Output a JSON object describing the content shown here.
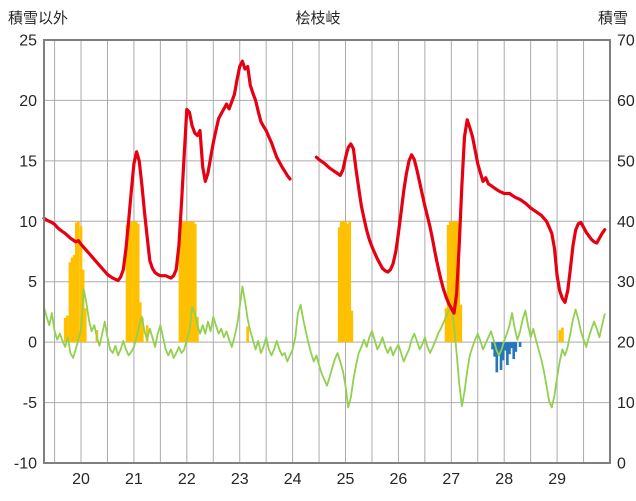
{
  "chart_data": {
    "type": "mixed",
    "title": "桧枝岐",
    "left_axis": {
      "title": "積雪以外",
      "lim": [
        -10,
        25
      ],
      "ticks": [
        -10,
        -5,
        0,
        5,
        10,
        15,
        20,
        25
      ]
    },
    "right_axis": {
      "title": "積雪",
      "lim": [
        0,
        70
      ],
      "ticks": [
        0,
        10,
        20,
        30,
        40,
        50,
        60,
        70
      ]
    },
    "x_axis": {
      "lim": [
        19.3,
        30.0
      ],
      "ticks": [
        20,
        21,
        22,
        23,
        24,
        25,
        26,
        27,
        28,
        29
      ],
      "grid_start": 19.5,
      "grid_step": 0.5,
      "grid_end": 29.5
    },
    "grid": {
      "on": true,
      "color": "#ababab",
      "frame_color": "#7f7f7f"
    },
    "legend": {
      "position": "none"
    },
    "series": [
      {
        "name": "snow-depth-line",
        "type": "line",
        "axis": "right",
        "color": "#e60012",
        "width": 3.2,
        "segments": [
          {
            "x_start": 19.3,
            "x_step": 0.05,
            "values": [
              40.5,
              40.2,
              40.0,
              39.8,
              39.5,
              39.0,
              38.6,
              38.3,
              38.0,
              37.6,
              37.2,
              36.9,
              36.6,
              36.8,
              36.2,
              35.7,
              35.2,
              34.7,
              34.2,
              33.7,
              33.2,
              32.7,
              32.2,
              31.7,
              31.2,
              30.9,
              30.6,
              30.4,
              30.2,
              30.8,
              32.0,
              35.5,
              40.0,
              45.0,
              49.5,
              51.5,
              50.0,
              46.0,
              41.5,
              37.5,
              33.5,
              32.2,
              31.5,
              31.2,
              31.0,
              31.0,
              31.0,
              30.8,
              30.6,
              31.0,
              32.0,
              36.0,
              43.0,
              51.0,
              58.5,
              58.0,
              55.8,
              54.6,
              54.2,
              55.0,
              49.0,
              46.6,
              48.0,
              50.5,
              53.0,
              55.0,
              57.0,
              57.8,
              58.6,
              59.4,
              58.6,
              59.8,
              61.0,
              63.5,
              65.6,
              66.5,
              65.2,
              65.6,
              62.5,
              61.2,
              60.0,
              58.2,
              56.5,
              55.7,
              55.0,
              54.0,
              53.0,
              51.8,
              50.6,
              49.8,
              49.0,
              48.3,
              47.6,
              47.0
            ]
          },
          {
            "x_start": 24.45,
            "x_step": 0.05,
            "values": [
              50.6,
              50.2,
              49.9,
              49.6,
              49.2,
              48.8,
              48.5,
              48.2,
              47.9,
              47.6,
              48.5,
              50.5,
              52.2,
              52.8,
              52.0,
              48.5,
              45.5,
              42.5,
              40.5,
              38.5,
              37.0,
              35.8,
              34.8,
              33.8,
              33.0,
              32.2,
              31.8,
              31.6,
              32.0,
              33.0,
              35.0,
              38.0,
              41.5,
              45.0,
              47.8,
              50.0,
              51.0,
              50.2,
              48.5,
              46.5,
              44.5,
              42.5,
              40.8,
              39.0,
              36.8,
              34.5,
              32.4,
              30.5,
              28.8,
              27.5,
              26.4,
              25.6,
              24.8,
              28.0,
              36.0,
              46.0,
              54.0,
              56.8,
              55.5,
              54.0,
              51.8,
              49.5,
              48.0,
              46.6,
              47.2,
              46.2,
              45.9,
              45.6,
              45.3,
              45.0,
              44.8,
              44.6,
              44.6,
              44.6,
              44.3,
              44.0,
              43.8,
              43.6,
              43.3,
              43.0,
              42.6,
              42.2,
              41.9,
              41.6,
              41.3,
              41.0,
              40.5,
              40.0,
              39.0,
              38.0,
              35.5,
              31.0,
              28.5,
              27.2,
              26.6,
              28.5,
              32.0,
              36.0,
              38.5,
              39.6,
              39.8,
              39.0,
              38.2,
              37.6,
              37.0,
              36.6,
              36.4,
              37.2,
              38.0,
              38.6
            ]
          }
        ]
      },
      {
        "name": "temperature-line",
        "type": "line",
        "axis": "left",
        "color": "#92d050",
        "width": 1.8,
        "segments": [
          {
            "x_start": 19.3,
            "x_step": 0.05,
            "values": [
              2.9,
              2.1,
              1.4,
              2.4,
              0.9,
              0.2,
              0.7,
              0.1,
              -0.4,
              0.4,
              -0.9,
              -1.3,
              -0.6,
              0.2,
              1.0,
              4.4,
              3.3,
              1.8,
              0.9,
              1.4,
              0.4,
              -0.3,
              0.7,
              1.7,
              0.4,
              -0.6,
              -0.9,
              -0.3,
              -1.1,
              -0.6,
              0.1,
              -0.6,
              -1.1,
              -0.8,
              -0.4,
              0.4,
              1.4,
              2.1,
              0.9,
              0.2,
              1.1,
              0.4,
              -0.4,
              0.7,
              1.4,
              0.4,
              -0.6,
              -1.1,
              -0.6,
              -1.3,
              -0.9,
              -0.4,
              -0.9,
              -0.6,
              0.2,
              0.9,
              2.9,
              2.4,
              1.4,
              0.7,
              1.4,
              0.7,
              1.7,
              0.9,
              2.1,
              1.4,
              0.7,
              1.1,
              0.4,
              0.9,
              0.2,
              -0.4,
              0.4,
              1.4,
              2.9,
              4.6,
              3.4,
              1.9,
              0.9,
              0.2,
              -0.6,
              0.1,
              -0.9,
              -0.4,
              0.4,
              -0.6,
              -1.1,
              -0.6,
              0.1,
              -0.6,
              -1.1,
              -0.9,
              -1.6,
              -1.1,
              -0.6,
              0.4,
              2.4,
              3.1,
              1.9,
              0.9,
              -0.1,
              -0.9,
              -1.6,
              -1.1,
              -1.9,
              -2.6,
              -3.1,
              -3.6,
              -2.9,
              -2.1,
              -1.4,
              -0.9,
              -1.6,
              -2.4,
              -3.6,
              -5.4,
              -4.6,
              -3.1,
              -1.9,
              -0.9,
              -0.4,
              0.2,
              -0.4,
              0.4,
              0.9,
              0.2,
              -0.6,
              -0.2,
              0.4,
              -0.4,
              -0.9,
              -0.4,
              -1.1,
              -0.6,
              -0.2,
              -0.9,
              -1.6,
              -1.1,
              -0.6,
              0.2,
              0.7,
              0.1,
              -0.6,
              -0.2,
              0.4,
              -0.4,
              -0.9,
              -0.4,
              0.1,
              0.7,
              1.1,
              1.6,
              2.1,
              2.6,
              2.9,
              1.4,
              -0.9,
              -3.4,
              -5.3,
              -4.1,
              -2.4,
              -1.1,
              -0.4,
              0.2,
              0.7,
              0.1,
              -0.6,
              -0.1,
              0.4,
              0.9,
              0.2,
              -0.6,
              -1.1,
              -0.6,
              0.1,
              0.7,
              1.4,
              2.4,
              1.1,
              0.2,
              0.9,
              1.9,
              2.6,
              1.4,
              0.4,
              1.1,
              0.2,
              -0.6,
              -1.4,
              -2.4,
              -3.6,
              -4.9,
              -5.4,
              -4.4,
              -2.9,
              -1.6,
              -0.6,
              -1.1,
              -0.4,
              0.7,
              1.9,
              2.7,
              1.9,
              0.9,
              0.2,
              -0.4,
              0.4,
              1.1,
              1.7,
              1.1,
              0.4,
              1.4,
              2.3
            ]
          }
        ]
      },
      {
        "name": "snowfall-bars",
        "type": "bar",
        "axis": "left",
        "color": "#ffc000",
        "bar_width": 0.05,
        "points": [
          [
            19.7,
            2.0
          ],
          [
            19.74,
            2.2
          ],
          [
            19.79,
            6.6
          ],
          [
            19.83,
            7.0
          ],
          [
            19.87,
            7.2
          ],
          [
            19.91,
            9.9
          ],
          [
            19.95,
            10.0
          ],
          [
            20.0,
            9.6
          ],
          [
            20.04,
            6.0
          ],
          [
            20.08,
            2.8
          ],
          [
            20.3,
            1.0
          ],
          [
            20.87,
            9.7
          ],
          [
            20.91,
            10.0
          ],
          [
            20.95,
            10.0
          ],
          [
            21.0,
            10.0
          ],
          [
            21.04,
            10.0
          ],
          [
            21.08,
            9.8
          ],
          [
            21.12,
            3.3
          ],
          [
            21.16,
            2.0
          ],
          [
            21.25,
            1.4
          ],
          [
            21.87,
            9.9
          ],
          [
            21.91,
            10.0
          ],
          [
            21.95,
            10.0
          ],
          [
            22.0,
            10.0
          ],
          [
            22.04,
            10.0
          ],
          [
            22.08,
            10.0
          ],
          [
            22.12,
            10.0
          ],
          [
            22.16,
            9.8
          ],
          [
            22.2,
            2.1
          ],
          [
            23.15,
            1.3
          ],
          [
            24.88,
            9.5
          ],
          [
            24.92,
            10.0
          ],
          [
            24.96,
            10.0
          ],
          [
            25.0,
            10.0
          ],
          [
            25.04,
            9.8
          ],
          [
            25.08,
            10.0
          ],
          [
            25.12,
            2.6
          ],
          [
            26.9,
            2.8
          ],
          [
            26.94,
            9.7
          ],
          [
            26.98,
            10.0
          ],
          [
            27.02,
            10.0
          ],
          [
            27.06,
            10.0
          ],
          [
            27.1,
            10.0
          ],
          [
            27.14,
            9.9
          ],
          [
            27.18,
            3.1
          ],
          [
            29.05,
            1.0
          ],
          [
            29.1,
            1.2
          ]
        ]
      },
      {
        "name": "rainfall-bars",
        "type": "bar",
        "axis": "left",
        "color": "#2776bb",
        "bar_width": 0.05,
        "points": [
          [
            27.78,
            -0.6
          ],
          [
            27.82,
            -1.2
          ],
          [
            27.86,
            -2.5
          ],
          [
            27.9,
            -1.0
          ],
          [
            27.94,
            -2.3
          ],
          [
            27.98,
            -1.5
          ],
          [
            28.02,
            -0.7
          ],
          [
            28.06,
            -1.9
          ],
          [
            28.1,
            -1.0
          ],
          [
            28.14,
            -0.5
          ],
          [
            28.18,
            -1.4
          ],
          [
            28.22,
            -0.8
          ],
          [
            28.3,
            -0.4
          ]
        ]
      }
    ]
  }
}
